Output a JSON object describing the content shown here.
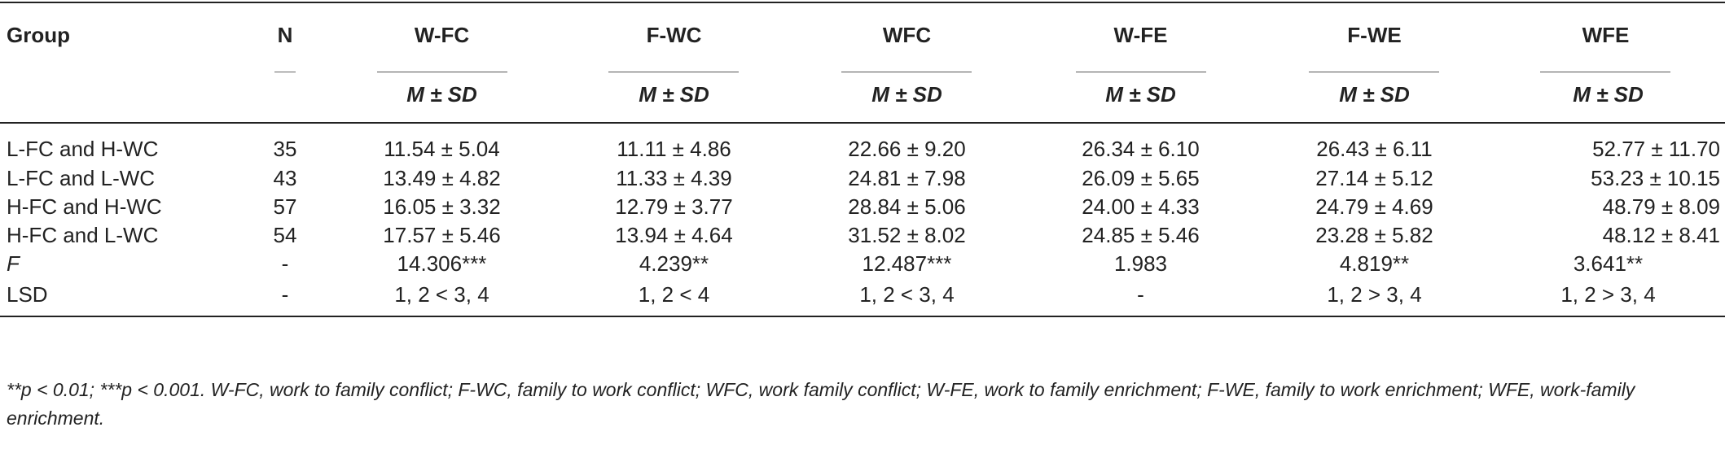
{
  "table": {
    "header": {
      "group": "Group",
      "n": "N",
      "columns": [
        "W-FC",
        "F-WC",
        "WFC",
        "W-FE",
        "F-WE",
        "WFE"
      ],
      "subheader": "M ± SD"
    },
    "rows": [
      {
        "label": "L-FC and H-WC",
        "n": "35",
        "values": [
          "11.54 ± 5.04",
          "11.11 ± 4.86",
          "22.66 ± 9.20",
          "26.34 ± 6.10",
          "26.43 ± 6.11",
          "52.77 ± 11.70"
        ]
      },
      {
        "label": "L-FC and L-WC",
        "n": "43",
        "values": [
          "13.49 ± 4.82",
          "11.33 ± 4.39",
          "24.81 ± 7.98",
          "26.09 ± 5.65",
          "27.14 ± 5.12",
          "53.23 ± 10.15"
        ]
      },
      {
        "label": "H-FC and H-WC",
        "n": "57",
        "values": [
          "16.05 ± 3.32",
          "12.79 ± 3.77",
          "28.84 ± 5.06",
          "24.00 ± 4.33",
          "24.79 ± 4.69",
          "48.79 ± 8.09"
        ]
      },
      {
        "label": "H-FC and L-WC",
        "n": "54",
        "values": [
          "17.57 ± 5.46",
          "13.94 ± 4.64",
          "31.52 ± 8.02",
          "24.85 ± 5.46",
          "23.28 ± 5.82",
          "48.12 ± 8.41"
        ]
      },
      {
        "label": "F",
        "n": "-",
        "values": [
          "14.306***",
          "4.239**",
          "12.487***",
          "1.983",
          "4.819**",
          "3.641**"
        ]
      },
      {
        "label": "LSD",
        "n": "-",
        "values": [
          "1, 2 < 3, 4",
          "1, 2 < 4",
          "1, 2 < 3, 4",
          "-",
          "1, 2 > 3, 4",
          "1, 2 > 3, 4"
        ]
      }
    ]
  },
  "note": "**p < 0.01; ***p < 0.001. W-FC, work to family conflict; F-WC, family to work conflict; WFC, work family conflict; W-FE, work to family enrichment; F-WE, family to work enrichment; WFE, work-family enrichment."
}
